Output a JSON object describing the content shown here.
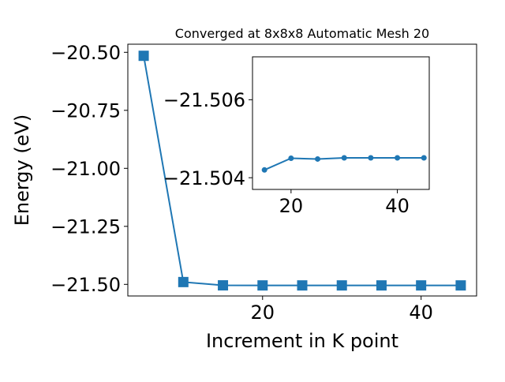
{
  "colors": {
    "series": "#1f77b4",
    "axes": "#000000",
    "background": "#ffffff"
  },
  "chart_data": [
    {
      "type": "line",
      "title": "Converged at 8x8x8 Automatic Mesh 20",
      "xlabel": "Increment in K point",
      "ylabel": "Energy (eV)",
      "xlim": [
        3,
        47
      ],
      "ylim": [
        -21.55,
        -20.465
      ],
      "xticks": [
        20,
        40
      ],
      "yticks": [
        -20.5,
        -20.75,
        -21.0,
        -21.25,
        -21.5
      ],
      "xtick_labels": [
        "20",
        "40"
      ],
      "ytick_labels": [
        "−20.50",
        "−20.75",
        "−21.00",
        "−21.25",
        "−21.50"
      ],
      "grid": false,
      "marker": "square",
      "x": [
        5,
        10,
        15,
        20,
        25,
        30,
        35,
        40,
        45
      ],
      "y": [
        -20.515,
        -21.49,
        -21.5042,
        -21.5045,
        -21.5045,
        -21.5045,
        -21.5045,
        -21.5045,
        -21.5045
      ]
    },
    {
      "type": "line",
      "title": "",
      "xlabel": "",
      "ylabel": "",
      "xlim": [
        12.75,
        46
      ],
      "ylim": [
        -21.5037,
        -21.5071
      ],
      "xticks": [
        20,
        40
      ],
      "yticks": [
        -21.506,
        -21.504
      ],
      "xtick_labels": [
        "20",
        "40"
      ],
      "ytick_labels": [
        "−21.506",
        "−21.504"
      ],
      "grid": false,
      "marker": "circle",
      "x": [
        15,
        20,
        25,
        30,
        35,
        40,
        45
      ],
      "y": [
        -21.5042,
        -21.5045,
        -21.50448,
        -21.50451,
        -21.50451,
        -21.50451,
        -21.50451
      ]
    }
  ]
}
